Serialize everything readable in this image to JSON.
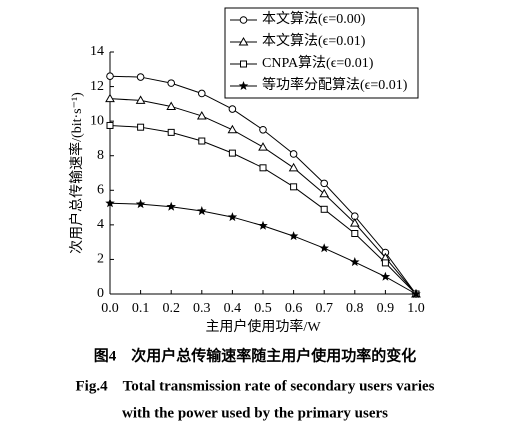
{
  "chart_data": {
    "type": "line",
    "x": [
      0,
      0.1,
      0.2,
      0.3,
      0.4,
      0.5,
      0.6,
      0.7,
      0.8,
      0.9,
      1.0
    ],
    "series": [
      {
        "name": "本文算法(ϵ=0.00)",
        "color": "#000000",
        "marker": "circle",
        "values": [
          12.6,
          12.55,
          12.2,
          11.6,
          10.7,
          9.5,
          8.1,
          6.4,
          4.5,
          2.4,
          0
        ]
      },
      {
        "name": "本文算法(ϵ=0.01)",
        "color": "#000000",
        "marker": "triangle",
        "values": [
          11.3,
          11.2,
          10.85,
          10.3,
          9.5,
          8.5,
          7.3,
          5.8,
          4.1,
          2.1,
          0
        ]
      },
      {
        "name": "CNPA算法(ϵ=0.01)",
        "color": "#000000",
        "marker": "square",
        "values": [
          9.75,
          9.65,
          9.35,
          8.85,
          8.15,
          7.3,
          6.2,
          4.9,
          3.5,
          1.8,
          0
        ]
      },
      {
        "name": "等功率分配算法(ϵ=0.01)",
        "color": "#000000",
        "marker": "star",
        "values": [
          5.25,
          5.2,
          5.05,
          4.8,
          4.45,
          3.95,
          3.35,
          2.65,
          1.85,
          1.0,
          0
        ]
      }
    ],
    "xlabel": "主用户使用功率/W",
    "ylabel": "次用户总传输速率/(bit·s⁻¹)",
    "xlim": [
      0,
      1.0
    ],
    "ylim": [
      0,
      14
    ],
    "xticks": [
      {
        "value": 0,
        "label": "0.0"
      },
      0.1,
      0.2,
      0.3,
      0.4,
      0.5,
      0.6,
      0.7,
      0.8,
      0.9,
      {
        "value": 1.0,
        "label": "1.0"
      }
    ],
    "yticks": [
      0,
      2,
      4,
      6,
      8,
      10,
      12,
      14
    ],
    "grid": false,
    "legend": "upper right",
    "caption": [
      "图4　次用户总传输速率随主用户使用功率的变化",
      "Fig.4　Total transmission rate of secondary users varies",
      "with the power used by the primary users"
    ]
  }
}
